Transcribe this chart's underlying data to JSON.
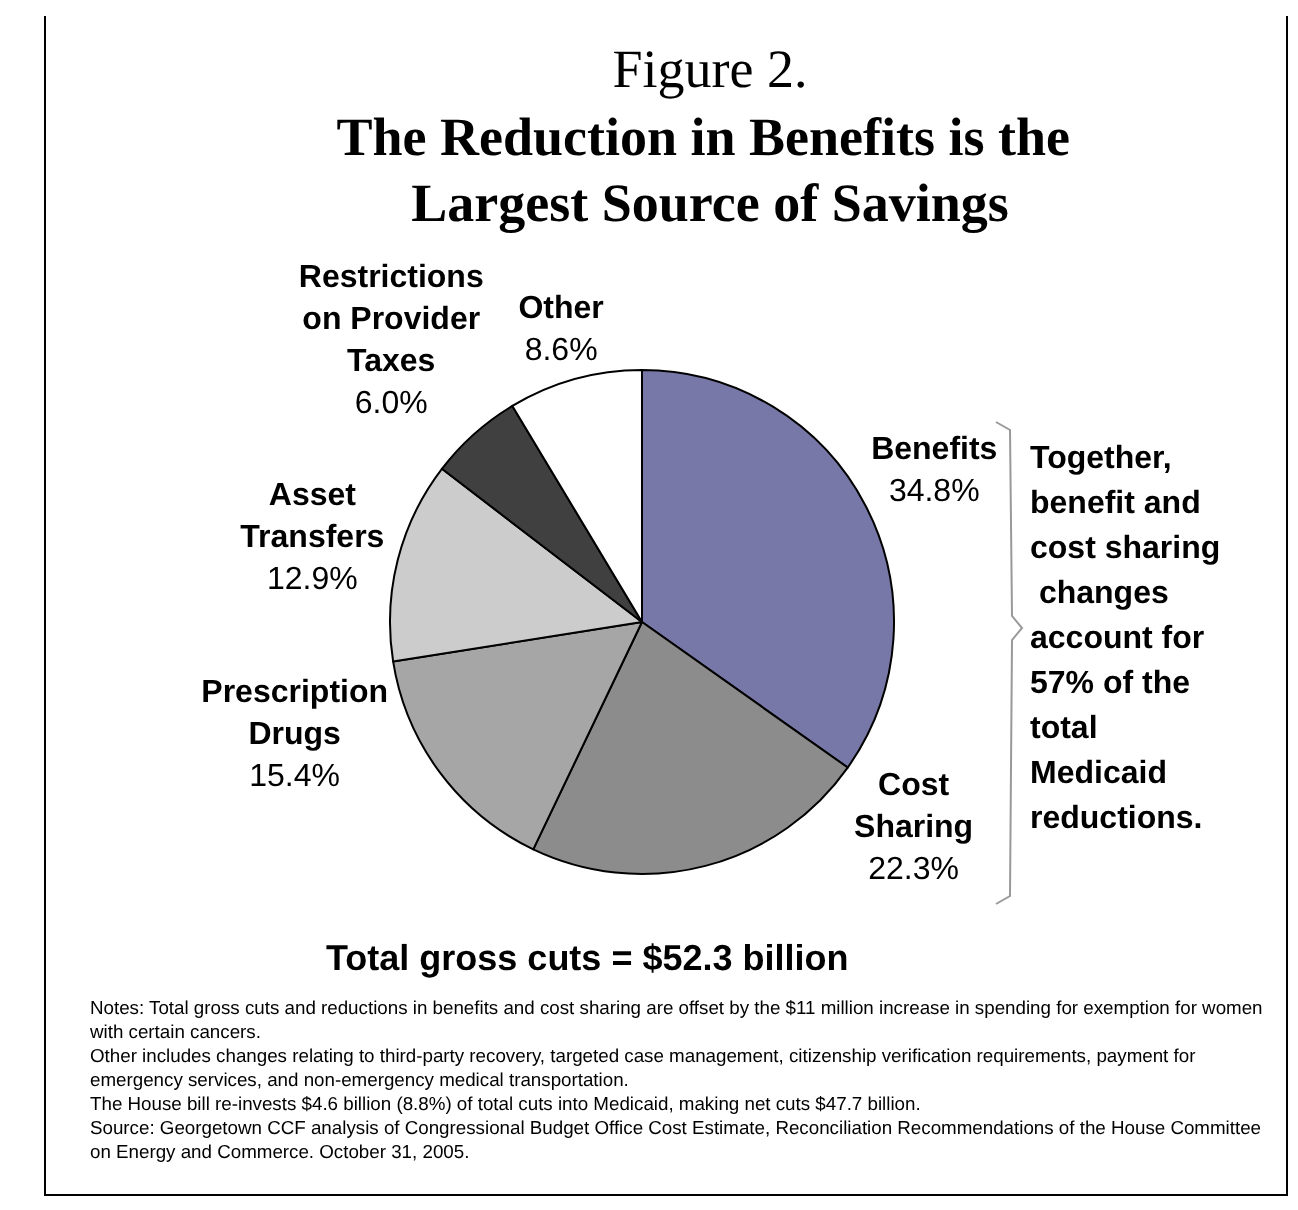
{
  "chart_data": {
    "type": "pie",
    "title": "Figure 2.",
    "subtitle": "The Reduction in Benefits is the Largest Source of Savings",
    "categories": [
      "Benefits",
      "Cost Sharing",
      "Prescription Drugs",
      "Asset Transfers",
      "Restrictions on Provider Taxes",
      "Other"
    ],
    "values": [
      34.8,
      22.3,
      15.4,
      12.9,
      6.0,
      8.6
    ],
    "colors": [
      "#7878a8",
      "#8c8c8c",
      "#a6a6a6",
      "#cccccc",
      "#404040",
      "#ffffff"
    ],
    "value_labels": [
      "34.8%",
      "22.3%",
      "15.4%",
      "12.9%",
      "6.0%",
      "8.6%"
    ],
    "annotations": [
      "Together, benefit and cost sharing changes account for 57% of the total Medicaid reductions.",
      "Total gross cuts = $52.3 billion",
      "Notes: Total gross cuts and reductions in benefits and cost sharing are offset by the $11 million increase in spending for exemption for women with certain cancers.",
      "Other includes changes relating to third-party recovery, targeted case management, citizenship verification requirements,  payment for emergency services, and non-emergency medical transportation.",
      "The House bill re-invests $4.6 billion (8.8%) of total cuts into Medicaid, making net cuts $47.7 billion.",
      "Source: Georgetown CCF analysis of Congressional Budget Office Cost Estimate, Reconciliation Recommendations of the House Committee on Energy and Commerce. October 31, 2005."
    ]
  }
}
